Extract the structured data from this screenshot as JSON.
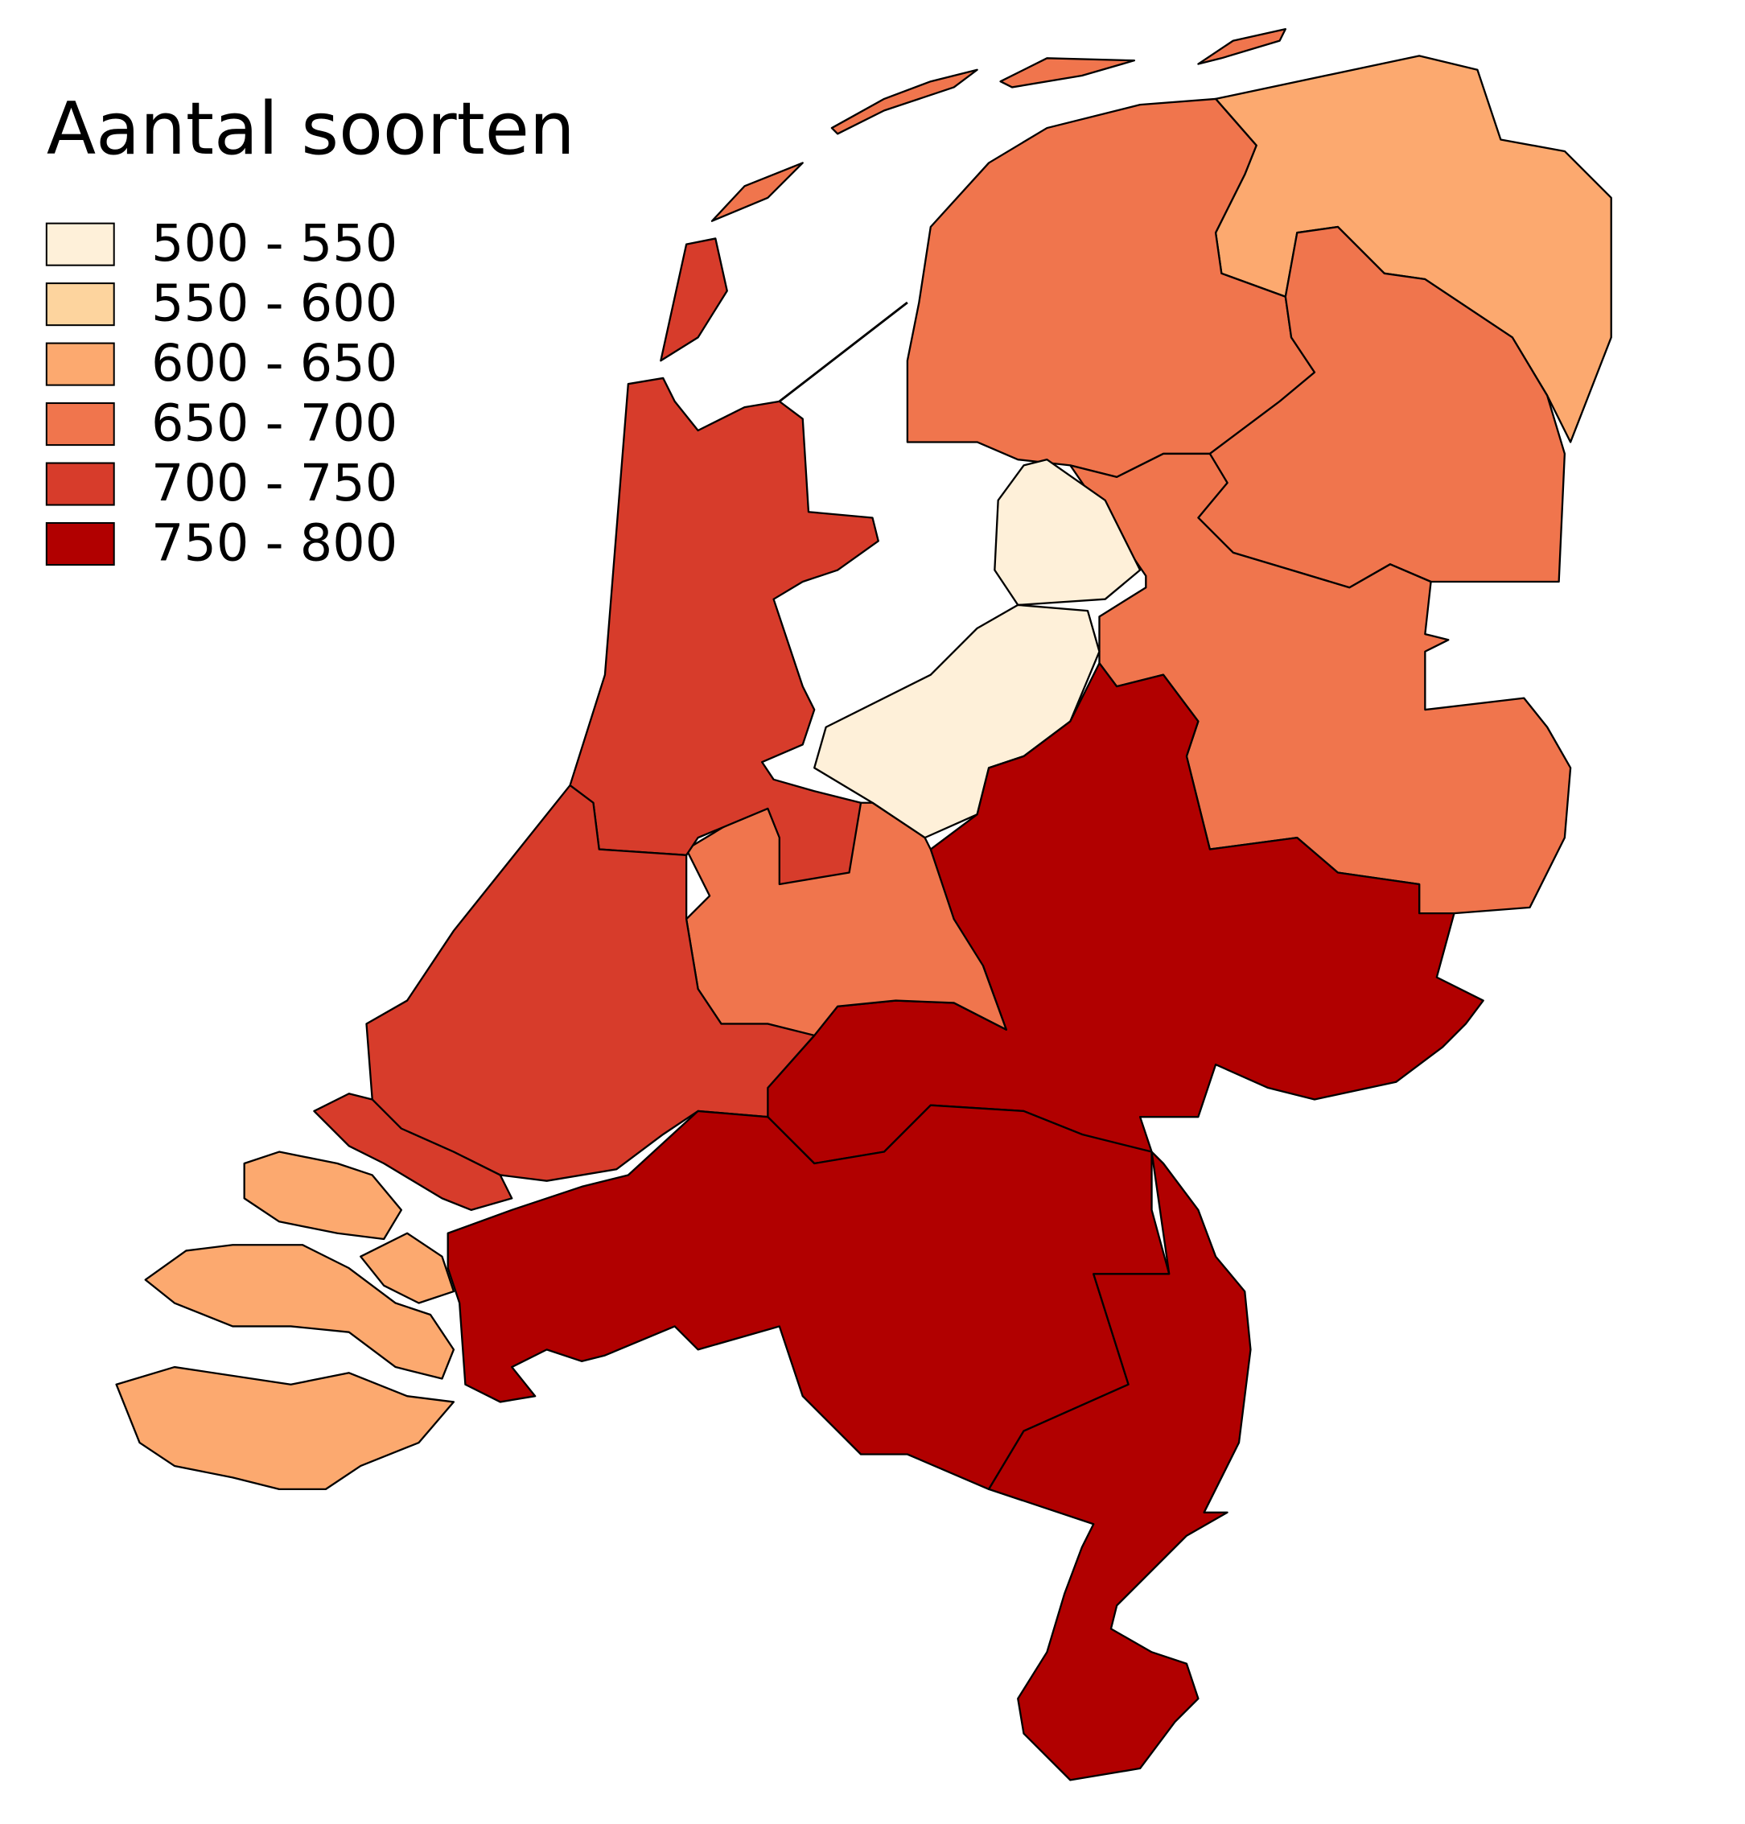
{
  "title": "Aantal soorten",
  "legend": {
    "items": [
      {
        "label": "500 - 550",
        "color": "#fef0d9"
      },
      {
        "label": "550 - 600",
        "color": "#fdd49e"
      },
      {
        "label": "600 - 650",
        "color": "#fca96f"
      },
      {
        "label": "650 - 700",
        "color": "#f0754d"
      },
      {
        "label": "700 - 750",
        "color": "#d73c2b"
      },
      {
        "label": "750 - 800",
        "color": "#b10000"
      }
    ]
  }
}
